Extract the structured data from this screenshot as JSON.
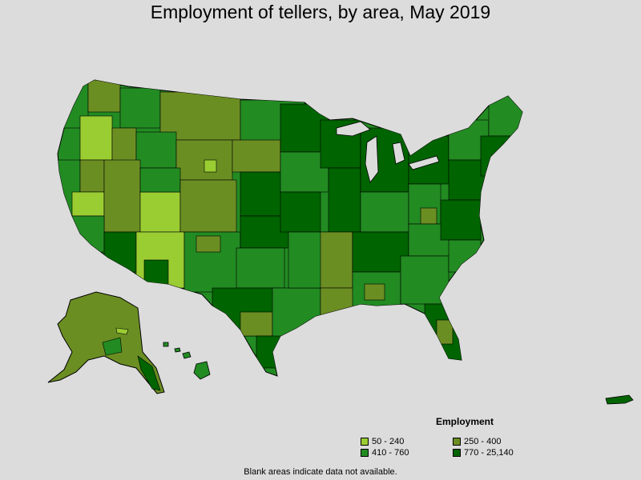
{
  "title": "Employment of tellers, by area, May 2019",
  "legend": {
    "heading": "Employment",
    "items": [
      {
        "label": "50 - 240",
        "color": "#9acd32"
      },
      {
        "label": "250 - 400",
        "color": "#6b8e23"
      },
      {
        "label": "410 - 760",
        "color": "#228b22"
      },
      {
        "label": "770 - 25,140",
        "color": "#006400"
      }
    ]
  },
  "note": "Blank areas indicate data not available.",
  "colors": {
    "background": "#dcdcdc",
    "border": "#000000"
  }
}
